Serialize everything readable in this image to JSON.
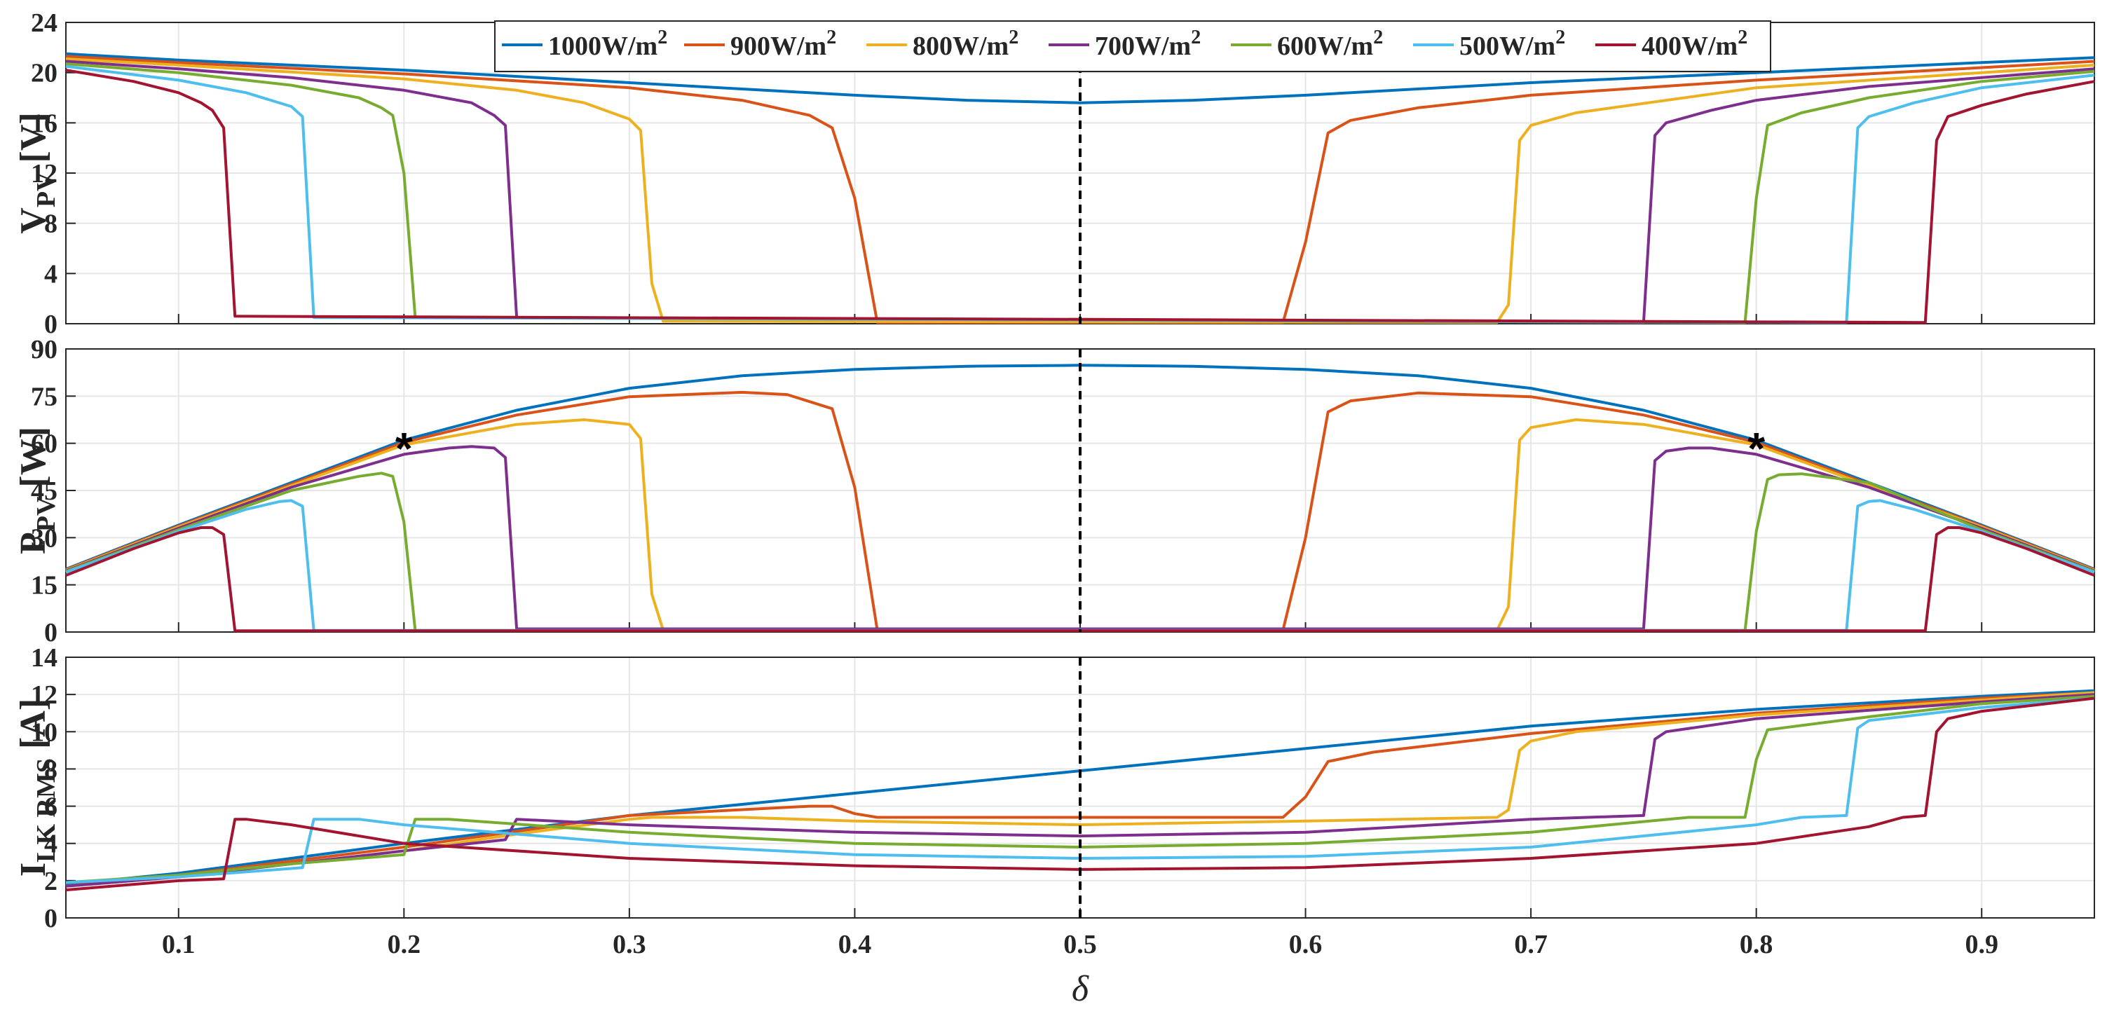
{
  "chart_data": {
    "type": "line",
    "xlabel": "δ",
    "xlim": [
      0.05,
      0.95
    ],
    "x_ticks": [
      "0.1",
      "0.2",
      "0.3",
      "0.4",
      "0.5",
      "0.6",
      "0.7",
      "0.8",
      "0.9"
    ],
    "x_tick_values": [
      0.1,
      0.2,
      0.3,
      0.4,
      0.5,
      0.6,
      0.7,
      0.8,
      0.9
    ],
    "vline_x": 0.5,
    "legend": [
      {
        "label": "1000W/m",
        "sup": "2",
        "color": "#0072BD"
      },
      {
        "label": "900W/m",
        "sup": "2",
        "color": "#D95319"
      },
      {
        "label": "800W/m",
        "sup": "2",
        "color": "#EDB120"
      },
      {
        "label": "700W/m",
        "sup": "2",
        "color": "#7E2F8E"
      },
      {
        "label": "600W/m",
        "sup": "2",
        "color": "#77AC30"
      },
      {
        "label": "500W/m",
        "sup": "2",
        "color": "#4DBEEE"
      },
      {
        "label": "400W/m",
        "sup": "2",
        "color": "#A2142F"
      }
    ],
    "panels": [
      {
        "id": "vpv",
        "ylabel_main": "V",
        "ylabel_sub": "PV",
        "ylabel_unit": " [V]",
        "ylim": [
          0,
          24
        ],
        "y_ticks": [
          0,
          4,
          8,
          12,
          16,
          20,
          24
        ],
        "series": [
          {
            "name": "1000W/m2",
            "x": [
              0.05,
              0.1,
              0.2,
              0.3,
              0.4,
              0.45,
              0.5,
              0.55,
              0.6,
              0.7,
              0.8,
              0.9,
              0.95
            ],
            "y": [
              21.5,
              21.0,
              20.2,
              19.2,
              18.2,
              17.8,
              17.6,
              17.8,
              18.2,
              19.2,
              20.0,
              20.8,
              21.2
            ]
          },
          {
            "name": "900W/m2",
            "x": [
              0.05,
              0.1,
              0.2,
              0.3,
              0.35,
              0.38,
              0.39,
              0.4,
              0.41,
              0.59,
              0.6,
              0.61,
              0.62,
              0.65,
              0.7,
              0.8,
              0.9,
              0.95
            ],
            "y": [
              21.3,
              20.8,
              19.9,
              18.8,
              17.8,
              16.6,
              15.6,
              10.0,
              0.1,
              0.1,
              6.5,
              15.2,
              16.2,
              17.2,
              18.2,
              19.4,
              20.4,
              20.9
            ]
          },
          {
            "name": "800W/m2",
            "x": [
              0.05,
              0.1,
              0.2,
              0.25,
              0.28,
              0.3,
              0.305,
              0.31,
              0.315,
              0.685,
              0.69,
              0.695,
              0.7,
              0.72,
              0.8,
              0.9,
              0.95
            ],
            "y": [
              21.1,
              20.6,
              19.5,
              18.6,
              17.6,
              16.3,
              15.4,
              3.2,
              0.2,
              0.1,
              1.5,
              14.6,
              15.8,
              16.8,
              18.8,
              20.0,
              20.6
            ]
          },
          {
            "name": "700W/m2",
            "x": [
              0.05,
              0.1,
              0.15,
              0.2,
              0.23,
              0.24,
              0.245,
              0.25,
              0.75,
              0.755,
              0.76,
              0.78,
              0.8,
              0.85,
              0.9,
              0.95
            ],
            "y": [
              20.9,
              20.3,
              19.6,
              18.6,
              17.6,
              16.6,
              15.8,
              0.5,
              0.1,
              15.0,
              16.0,
              17.0,
              17.8,
              18.9,
              19.6,
              20.3
            ]
          },
          {
            "name": "600W/m2",
            "x": [
              0.05,
              0.1,
              0.15,
              0.18,
              0.19,
              0.195,
              0.2,
              0.205,
              0.795,
              0.8,
              0.805,
              0.82,
              0.85,
              0.9,
              0.95
            ],
            "y": [
              20.7,
              20.0,
              19.0,
              18.0,
              17.2,
              16.6,
              12.0,
              0.5,
              0.1,
              10.0,
              15.8,
              16.8,
              18.0,
              19.3,
              20.1
            ]
          },
          {
            "name": "500W/m2",
            "x": [
              0.05,
              0.1,
              0.13,
              0.15,
              0.155,
              0.16,
              0.84,
              0.845,
              0.85,
              0.87,
              0.9,
              0.95
            ],
            "y": [
              20.5,
              19.4,
              18.4,
              17.3,
              16.5,
              0.5,
              0.1,
              15.6,
              16.5,
              17.6,
              18.8,
              19.8
            ]
          },
          {
            "name": "400W/m2",
            "x": [
              0.05,
              0.08,
              0.1,
              0.11,
              0.115,
              0.12,
              0.125,
              0.875,
              0.88,
              0.885,
              0.9,
              0.92,
              0.95
            ],
            "y": [
              20.2,
              19.3,
              18.4,
              17.6,
              17.0,
              15.6,
              0.6,
              0.1,
              14.6,
              16.5,
              17.4,
              18.3,
              19.3
            ]
          }
        ]
      },
      {
        "id": "ppv",
        "ylabel_main": "P",
        "ylabel_sub": "PV",
        "ylabel_unit": " [W]",
        "ylim": [
          0,
          90
        ],
        "y_ticks": [
          0,
          15,
          30,
          45,
          60,
          75,
          90
        ],
        "markers": [
          {
            "x": 0.2,
            "y": 61.0,
            "label": "*"
          },
          {
            "x": 0.8,
            "y": 61.0,
            "label": "*"
          }
        ],
        "series": [
          {
            "name": "1000W/m2",
            "x": [
              0.05,
              0.1,
              0.15,
              0.2,
              0.25,
              0.3,
              0.35,
              0.4,
              0.45,
              0.5,
              0.55,
              0.6,
              0.65,
              0.7,
              0.75,
              0.8,
              0.85,
              0.9,
              0.95
            ],
            "y": [
              20.0,
              34.0,
              47.5,
              61.0,
              70.5,
              77.5,
              81.5,
              83.5,
              84.5,
              84.8,
              84.5,
              83.5,
              81.5,
              77.5,
              70.5,
              61.0,
              47.5,
              34.0,
              20.0
            ]
          },
          {
            "name": "900W/m2",
            "x": [
              0.05,
              0.1,
              0.15,
              0.2,
              0.25,
              0.3,
              0.35,
              0.37,
              0.39,
              0.4,
              0.41,
              0.59,
              0.6,
              0.61,
              0.62,
              0.65,
              0.7,
              0.75,
              0.8,
              0.85,
              0.9,
              0.95
            ],
            "y": [
              19.8,
              33.7,
              47.0,
              60.3,
              69.0,
              74.8,
              76.2,
              75.5,
              71.0,
              46.0,
              0.6,
              0.6,
              30.0,
              70.0,
              73.5,
              76.0,
              74.8,
              69.0,
              60.3,
              47.0,
              33.7,
              19.8
            ]
          },
          {
            "name": "800W/m2",
            "x": [
              0.05,
              0.1,
              0.15,
              0.2,
              0.25,
              0.28,
              0.3,
              0.305,
              0.31,
              0.315,
              0.685,
              0.69,
              0.695,
              0.7,
              0.72,
              0.75,
              0.8,
              0.85,
              0.9,
              0.95
            ],
            "y": [
              19.6,
              33.4,
              46.5,
              59.5,
              66.0,
              67.5,
              66.0,
              61.5,
              12.0,
              0.6,
              0.6,
              8.0,
              61.0,
              65.0,
              67.5,
              66.0,
              59.5,
              46.5,
              33.4,
              19.6
            ]
          },
          {
            "name": "700W/m2",
            "x": [
              0.05,
              0.1,
              0.15,
              0.2,
              0.22,
              0.23,
              0.24,
              0.245,
              0.25,
              0.75,
              0.755,
              0.76,
              0.77,
              0.78,
              0.8,
              0.85,
              0.9,
              0.95
            ],
            "y": [
              19.4,
              33.0,
              46.0,
              56.5,
              58.5,
              59.0,
              58.5,
              55.5,
              1.0,
              1.0,
              54.5,
              57.5,
              58.5,
              58.5,
              56.5,
              46.0,
              33.0,
              19.4
            ]
          },
          {
            "name": "600W/m2",
            "x": [
              0.05,
              0.1,
              0.15,
              0.18,
              0.19,
              0.195,
              0.2,
              0.205,
              0.795,
              0.8,
              0.805,
              0.81,
              0.82,
              0.85,
              0.9,
              0.95
            ],
            "y": [
              19.2,
              32.5,
              45.0,
              49.5,
              50.5,
              49.5,
              35.0,
              0.5,
              0.5,
              32.0,
              48.5,
              50.0,
              50.3,
              47.5,
              32.5,
              19.2
            ]
          },
          {
            "name": "500W/m2",
            "x": [
              0.05,
              0.1,
              0.13,
              0.145,
              0.15,
              0.155,
              0.16,
              0.84,
              0.845,
              0.85,
              0.855,
              0.87,
              0.9,
              0.95
            ],
            "y": [
              19.0,
              32.0,
              39.0,
              41.5,
              41.8,
              40.0,
              0.5,
              0.5,
              40.0,
              41.5,
              41.8,
              39.0,
              32.0,
              19.0
            ]
          },
          {
            "name": "400W/m2",
            "x": [
              0.05,
              0.08,
              0.1,
              0.11,
              0.115,
              0.12,
              0.125,
              0.875,
              0.88,
              0.885,
              0.89,
              0.9,
              0.92,
              0.95
            ],
            "y": [
              18.0,
              26.5,
              31.5,
              33.2,
              33.2,
              31.0,
              0.4,
              0.4,
              31.0,
              33.2,
              33.2,
              31.5,
              26.5,
              18.0
            ]
          }
        ]
      },
      {
        "id": "ilk",
        "ylabel_main": "I",
        "ylabel_sub": "LK RMS",
        "ylabel_unit": " [A]",
        "ylim": [
          0,
          14
        ],
        "y_ticks": [
          0,
          2,
          4,
          6,
          8,
          10,
          12,
          14
        ],
        "series": [
          {
            "name": "1000W/m2",
            "x": [
              0.05,
              0.1,
              0.2,
              0.3,
              0.4,
              0.5,
              0.6,
              0.7,
              0.8,
              0.9,
              0.95
            ],
            "y": [
              1.8,
              2.4,
              4.0,
              5.5,
              6.7,
              7.9,
              9.1,
              10.3,
              11.2,
              11.9,
              12.2
            ]
          },
          {
            "name": "900W/m2",
            "x": [
              0.05,
              0.1,
              0.2,
              0.3,
              0.38,
              0.39,
              0.4,
              0.41,
              0.5,
              0.59,
              0.6,
              0.61,
              0.63,
              0.7,
              0.8,
              0.9,
              0.95
            ],
            "y": [
              1.7,
              2.3,
              3.8,
              5.5,
              6.0,
              6.0,
              5.6,
              5.4,
              5.4,
              5.4,
              6.5,
              8.4,
              8.9,
              9.9,
              11.0,
              11.8,
              12.1
            ]
          },
          {
            "name": "800W/m2",
            "x": [
              0.05,
              0.1,
              0.2,
              0.25,
              0.3,
              0.31,
              0.35,
              0.4,
              0.5,
              0.6,
              0.685,
              0.69,
              0.695,
              0.7,
              0.72,
              0.8,
              0.9,
              0.95
            ],
            "y": [
              1.7,
              2.2,
              3.6,
              4.5,
              5.3,
              5.4,
              5.4,
              5.2,
              5.0,
              5.2,
              5.4,
              5.8,
              9.0,
              9.5,
              10.0,
              10.9,
              11.7,
              12.1
            ]
          },
          {
            "name": "700W/m2",
            "x": [
              0.05,
              0.1,
              0.2,
              0.245,
              0.25,
              0.3,
              0.4,
              0.5,
              0.6,
              0.7,
              0.75,
              0.755,
              0.76,
              0.8,
              0.9,
              0.95
            ],
            "y": [
              1.7,
              2.2,
              3.6,
              4.2,
              5.3,
              5.0,
              4.6,
              4.4,
              4.6,
              5.3,
              5.5,
              9.6,
              10.0,
              10.7,
              11.6,
              12.0
            ]
          },
          {
            "name": "600W/m2",
            "x": [
              0.05,
              0.1,
              0.15,
              0.2,
              0.205,
              0.22,
              0.3,
              0.4,
              0.5,
              0.6,
              0.7,
              0.77,
              0.795,
              0.8,
              0.805,
              0.85,
              0.9,
              0.95
            ],
            "y": [
              1.9,
              2.3,
              2.9,
              3.4,
              5.3,
              5.3,
              4.6,
              4.0,
              3.8,
              4.0,
              4.6,
              5.4,
              5.4,
              8.5,
              10.1,
              10.8,
              11.5,
              11.9
            ]
          },
          {
            "name": "500W/m2",
            "x": [
              0.05,
              0.1,
              0.155,
              0.16,
              0.18,
              0.2,
              0.3,
              0.4,
              0.5,
              0.6,
              0.7,
              0.8,
              0.82,
              0.84,
              0.845,
              0.85,
              0.9,
              0.95
            ],
            "y": [
              1.9,
              2.2,
              2.7,
              5.3,
              5.3,
              5.0,
              4.0,
              3.4,
              3.2,
              3.3,
              3.8,
              5.0,
              5.4,
              5.5,
              10.2,
              10.6,
              11.3,
              11.8
            ]
          },
          {
            "name": "400W/m2",
            "x": [
              0.05,
              0.1,
              0.12,
              0.125,
              0.13,
              0.15,
              0.2,
              0.3,
              0.4,
              0.5,
              0.6,
              0.7,
              0.8,
              0.85,
              0.865,
              0.875,
              0.88,
              0.885,
              0.9,
              0.95
            ],
            "y": [
              1.5,
              2.0,
              2.1,
              5.3,
              5.3,
              5.0,
              4.0,
              3.2,
              2.8,
              2.6,
              2.7,
              3.2,
              4.0,
              4.9,
              5.4,
              5.5,
              10.0,
              10.7,
              11.1,
              11.8
            ]
          }
        ]
      }
    ]
  }
}
